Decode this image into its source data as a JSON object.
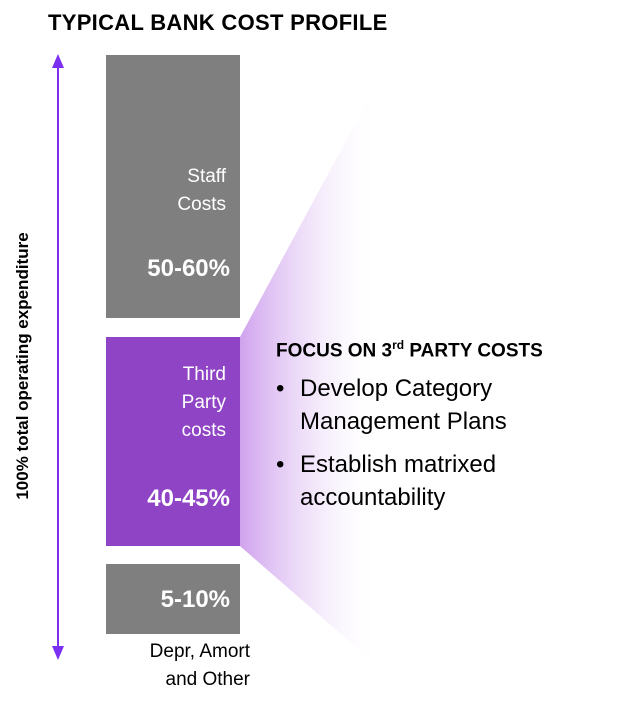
{
  "title": "TYPICAL BANK COST PROFILE",
  "axis_label": "100% total operating expenditure",
  "colors": {
    "grey": "#7f7f7f",
    "purple": "#8e44c4",
    "arrow": "#7b2ff0"
  },
  "blocks": {
    "staff": {
      "label_line1": "Staff",
      "label_line2": "Costs",
      "percent": "50-60%"
    },
    "third": {
      "label_line1": "Third",
      "label_line2": "Party",
      "label_line3": "costs",
      "percent": "40-45%"
    },
    "depr": {
      "percent": "5-10%",
      "label_line1": "Depr, Amort",
      "label_line2": "and Other"
    }
  },
  "focus": {
    "heading_prefix": "FOCUS ON 3",
    "heading_sup": "rd",
    "heading_suffix": " PARTY COSTS",
    "bullets": [
      {
        "line1": "Develop Category",
        "line2": "Management Plans"
      },
      {
        "line1": "Establish matrixed",
        "line2": "accountability"
      }
    ]
  }
}
